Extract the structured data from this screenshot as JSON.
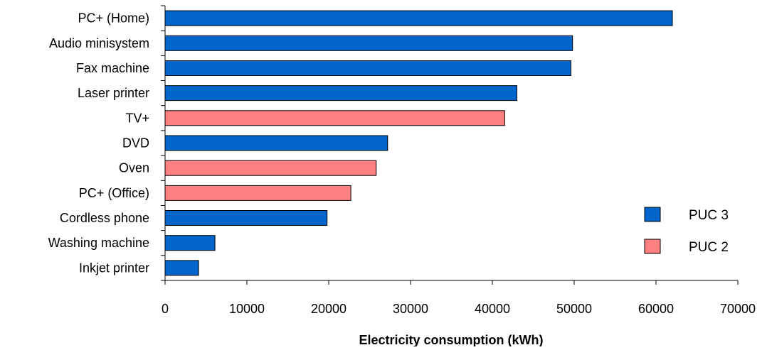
{
  "chart_data": {
    "type": "bar",
    "orientation": "horizontal",
    "title": "",
    "xlabel": "Electricity consumption (kWh)",
    "ylabel": "",
    "xlim": [
      0,
      70000
    ],
    "xticks": [
      0,
      10000,
      20000,
      30000,
      40000,
      50000,
      60000,
      70000
    ],
    "xtick_labels": [
      "0",
      "10000",
      "20000",
      "30000",
      "40000",
      "50000",
      "60000",
      "70000"
    ],
    "grid": false,
    "legend_position": "right",
    "series": [
      {
        "name": "PUC 3",
        "color": "#0066CC"
      },
      {
        "name": "PUC 2",
        "color": "#FF8080"
      }
    ],
    "categories": [
      "PC+ (Home)",
      "Audio minisystem",
      "Fax machine",
      "Laser printer",
      "TV+",
      "DVD",
      "Oven",
      "PC+ (Office)",
      "Cordless phone",
      "Washing machine",
      "Inkjet printer"
    ],
    "values": [
      62000,
      49800,
      49600,
      43000,
      41500,
      27200,
      25800,
      22700,
      19800,
      6100,
      4100
    ],
    "bar_series": [
      "PUC 3",
      "PUC 3",
      "PUC 3",
      "PUC 3",
      "PUC 2",
      "PUC 3",
      "PUC 2",
      "PUC 2",
      "PUC 3",
      "PUC 3",
      "PUC 3"
    ]
  }
}
